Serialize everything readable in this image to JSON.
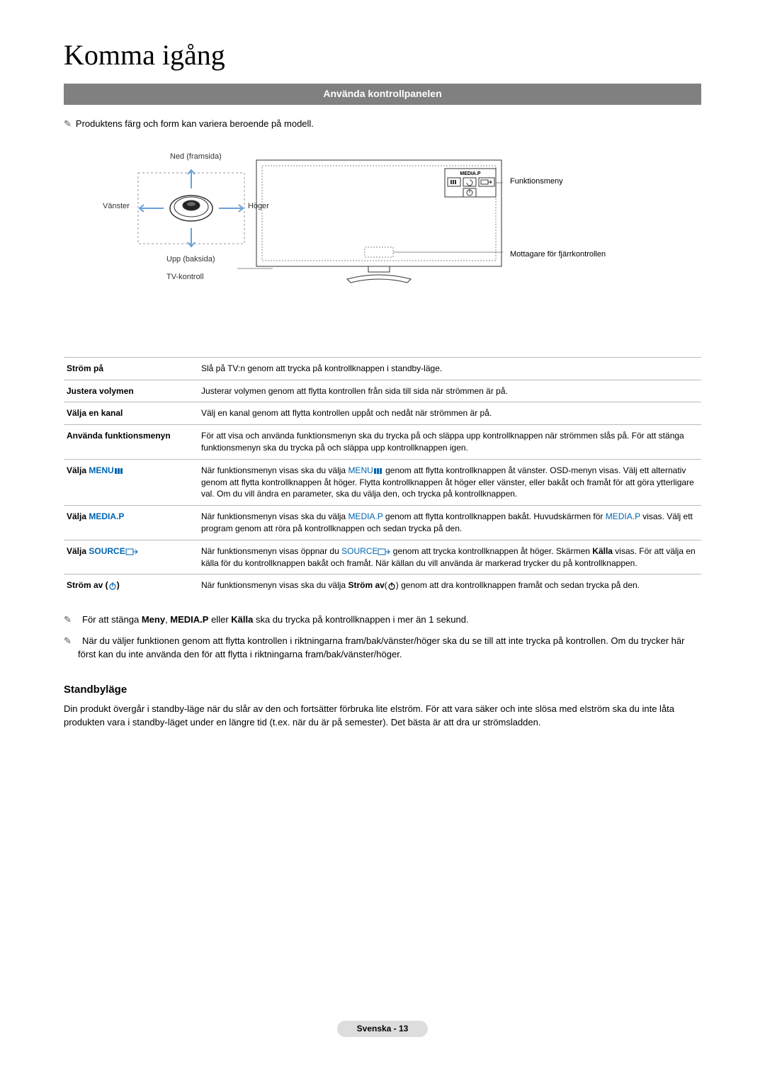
{
  "page_title": "Komma igång",
  "section_header": "Använda kontrollpanelen",
  "top_note": "Produktens färg och form kan variera beroende på modell.",
  "diagram_labels": {
    "top": "Ned (framsida)",
    "left": "Vänster",
    "right": "Höger",
    "bottom1": "Upp (baksida)",
    "bottom2": "TV-kontroll",
    "funktionsmeny": "Funktionsmeny",
    "remote_receiver": "Mottagare för fjärrkontrollen",
    "media_p": "MEDIA.P"
  },
  "functions": [
    {
      "label": "Ström på",
      "desc": "Slå på TV:n genom att trycka på kontrollknappen i standby-läge."
    },
    {
      "label": "Justera volymen",
      "desc": "Justerar volymen genom att flytta kontrollen från sida till sida när strömmen är på."
    },
    {
      "label": "Välja en kanal",
      "desc": "Välj en kanal genom att flytta kontrollen uppåt och nedåt när strömmen är på."
    },
    {
      "label": "Använda funktionsmenyn",
      "desc": "För att visa och använda funktionsmenyn ska du trycka på och släppa upp kontrollknappen när strömmen slås på. För att stänga funktionsmenyn ska du trycka på och släppa upp kontrollknappen igen."
    },
    {
      "label_prefix": "Välja ",
      "label_blue": "MENU",
      "label_icon": "menu",
      "desc_parts": [
        {
          "t": "När funktionsmenyn visas ska du välja "
        },
        {
          "t": "MENU",
          "blue": true,
          "icon": "menu"
        },
        {
          "t": " genom att flytta kontrollknappen åt vänster. OSD-menyn visas. Välj ett alternativ genom att flytta kontrollknappen åt höger. Flytta kontrollknappen åt höger eller vänster, eller bakåt och framåt för att göra ytterligare val. Om du vill ändra en parameter, ska du välja den, och trycka på kontrollknappen."
        }
      ]
    },
    {
      "label_prefix": "Välja ",
      "label_blue": "MEDIA.P",
      "desc_parts": [
        {
          "t": "När funktionsmenyn visas ska du välja "
        },
        {
          "t": "MEDIA.P",
          "blue": true
        },
        {
          "t": " genom att flytta kontrollknappen bakåt. Huvudskärmen för "
        },
        {
          "t": "MEDIA.P",
          "blue": true
        },
        {
          "t": " visas. Välj ett program genom att röra på kontrollknappen och sedan trycka på den."
        }
      ]
    },
    {
      "label_prefix": "Välja ",
      "label_blue": "SOURCE",
      "label_icon": "source",
      "desc_parts": [
        {
          "t": "När funktionsmenyn visas öppnar du "
        },
        {
          "t": "SOURCE",
          "blue": true,
          "icon": "source"
        },
        {
          "t": " genom att trycka kontrollknappen åt höger. Skärmen "
        },
        {
          "t": "Källa",
          "bold": true
        },
        {
          "t": " visas. För att välja en källa för du kontrollknappen bakåt och framåt. När källan du vill använda är markerad trycker du på kontrollknappen."
        }
      ]
    },
    {
      "label_prefix": "Ström av ",
      "label_icon_only": "power",
      "desc_parts": [
        {
          "t": "När funktionsmenyn visas ska du välja "
        },
        {
          "t": "Ström av",
          "bold": true
        },
        {
          "t": "("
        },
        {
          "icon_only": "power"
        },
        {
          "t": ") genom att dra kontrollknappen framåt och sedan trycka på den."
        }
      ]
    }
  ],
  "bottom_notes": [
    {
      "parts": [
        {
          "t": "För att stänga "
        },
        {
          "t": "Meny",
          "bold": true
        },
        {
          "t": ", "
        },
        {
          "t": "MEDIA.P",
          "bold": true
        },
        {
          "t": " eller "
        },
        {
          "t": "Källa",
          "bold": true
        },
        {
          "t": " ska du trycka på kontrollknappen i mer än 1 sekund."
        }
      ]
    },
    {
      "parts": [
        {
          "t": "När du väljer funktionen genom att flytta kontrollen i riktningarna fram/bak/vänster/höger ska du se till att inte trycka på kontrollen. Om du trycker här först kan du inte använda den för att flytta i riktningarna fram/bak/vänster/höger."
        }
      ]
    }
  ],
  "standby": {
    "heading": "Standbyläge",
    "body": "Din produkt övergår i standby-läge när du slår av den och fortsätter förbruka lite elström. För att vara säker och inte slösa med elström ska du inte låta produkten vara i standby-läget under en längre tid (t.ex. när du är på semester). Det bästa är att dra ur strömsladden."
  },
  "page_number": "Svenska - 13",
  "colors": {
    "section_bg": "#808080",
    "blue": "#0066b3",
    "border": "#bbbbbb",
    "footer_bg": "#dddddd"
  }
}
